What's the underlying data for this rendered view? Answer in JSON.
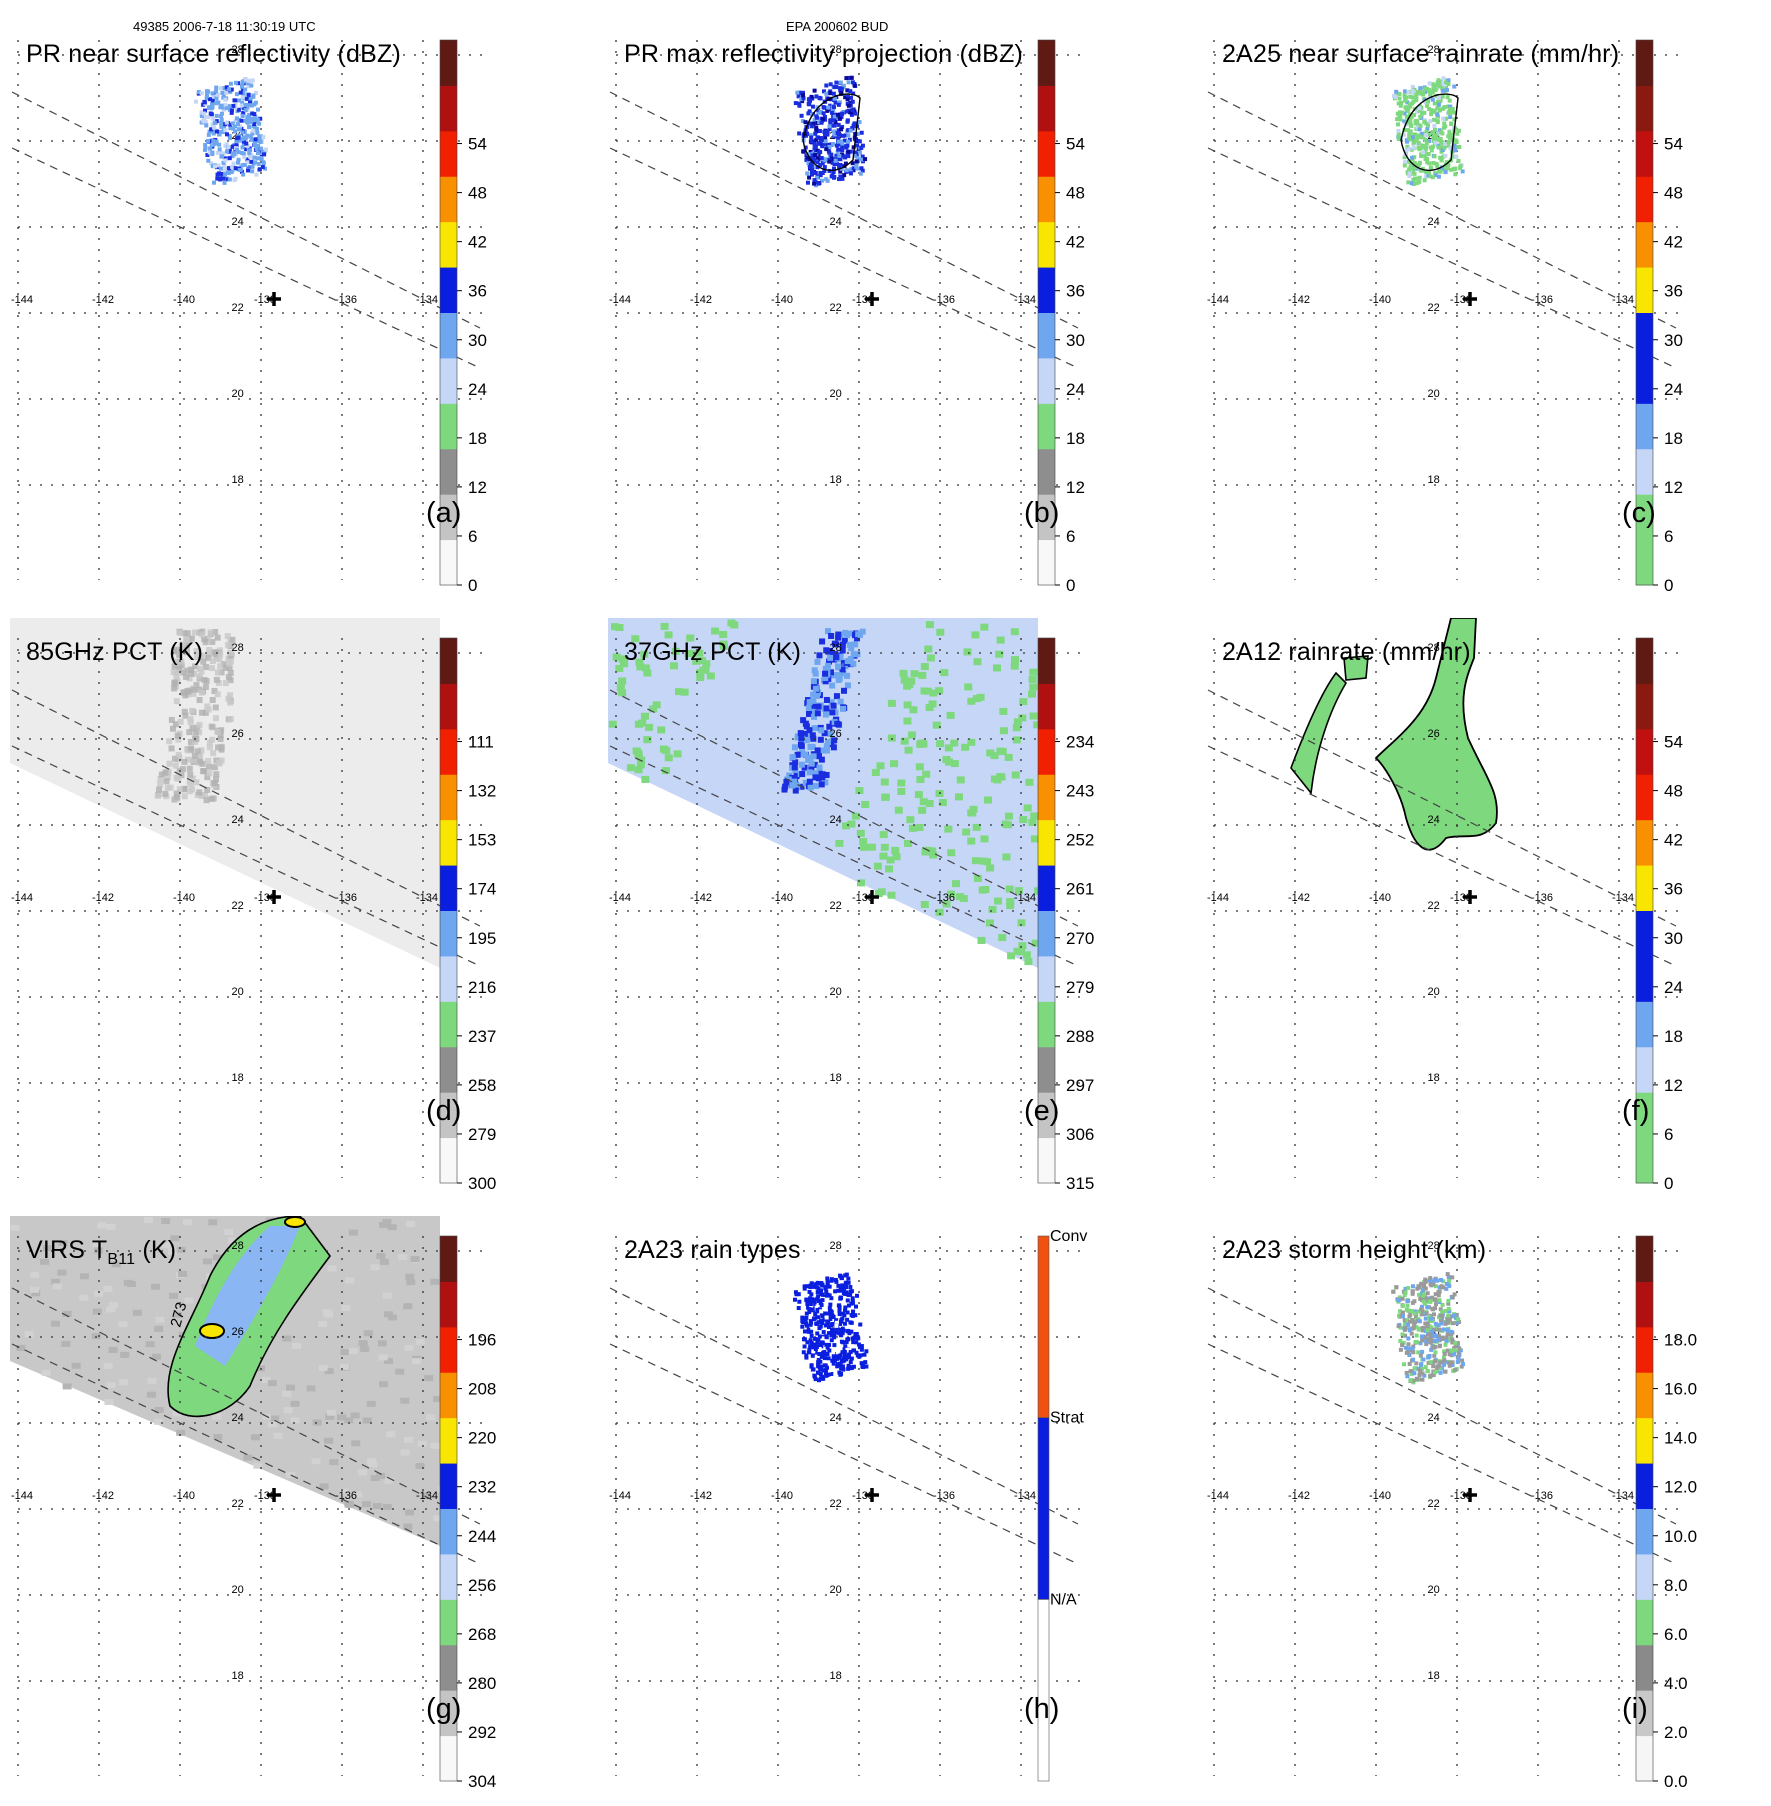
{
  "header": {
    "left": "49385 2006-7-18 11:30:19 UTC",
    "center": "EPA 200602 BUD"
  },
  "map": {
    "lon_ticks": [
      "-144",
      "-142",
      "-140",
      "-138",
      "-136",
      "-134"
    ],
    "lat_ticks": [
      "28",
      "26",
      "24",
      "22",
      "20",
      "18"
    ]
  },
  "chart_data": [
    {
      "type": "heatmap",
      "id": "a",
      "label": "(a)",
      "title": "PR near surface reflectivity (dBZ)",
      "colorbar": {
        "ticks": [
          "0",
          "6",
          "12",
          "18",
          "24",
          "30",
          "36",
          "42",
          "48",
          "54"
        ],
        "range": [
          0,
          60
        ]
      },
      "field": "pr_cluster"
    },
    {
      "type": "heatmap",
      "id": "b",
      "label": "(b)",
      "title": "PR max reflectivity projection (dBZ)",
      "colorbar": {
        "ticks": [
          "0",
          "6",
          "12",
          "18",
          "24",
          "30",
          "36",
          "42",
          "48",
          "54"
        ],
        "range": [
          0,
          60
        ]
      },
      "field": "pr_cluster_dense"
    },
    {
      "type": "heatmap",
      "id": "c",
      "label": "(c)",
      "title": "2A25 near surface rainrate (mm/hr)",
      "colorbar": {
        "ticks": [
          "0",
          "6",
          "12",
          "18",
          "24",
          "30",
          "36",
          "42",
          "48",
          "54"
        ],
        "range": [
          0,
          60
        ]
      },
      "field": "pr_cluster_green"
    },
    {
      "type": "heatmap",
      "id": "d",
      "label": "(d)",
      "title": "85GHz PCT (K)",
      "colorbar": {
        "ticks": [
          "300",
          "279",
          "258",
          "237",
          "216",
          "195",
          "174",
          "153",
          "132",
          "111"
        ],
        "range": [
          300,
          90
        ]
      },
      "field": "tmi_gray"
    },
    {
      "type": "heatmap",
      "id": "e",
      "label": "(e)",
      "title": "37GHz PCT (K)",
      "colorbar": {
        "ticks": [
          "315",
          "306",
          "297",
          "288",
          "279",
          "270",
          "261",
          "252",
          "243",
          "234"
        ],
        "range": [
          315,
          225
        ]
      },
      "field": "tmi_37"
    },
    {
      "type": "heatmap",
      "id": "f",
      "label": "(f)",
      "title": "2A12 rainrate (mm/hr)",
      "colorbar": {
        "ticks": [
          "0",
          "6",
          "12",
          "18",
          "24",
          "30",
          "36",
          "42",
          "48",
          "54"
        ],
        "range": [
          0,
          60
        ]
      },
      "field": "tmi_rain"
    },
    {
      "type": "heatmap",
      "id": "g",
      "label": "(g)",
      "title_main": "VIRS T",
      "title_sub": "B11",
      "title_unit": " (K)",
      "colorbar": {
        "ticks": [
          "304",
          "292",
          "280",
          "268",
          "256",
          "244",
          "232",
          "220",
          "208",
          "196"
        ],
        "range": [
          304,
          184
        ]
      },
      "contour_label": "273",
      "field": "virs"
    },
    {
      "type": "heatmap",
      "id": "h",
      "label": "(h)",
      "title": "2A23 rain types",
      "colorbar": {
        "categories": [
          "N/A",
          "Strat",
          "Conv"
        ]
      },
      "field": "pr_types"
    },
    {
      "type": "heatmap",
      "id": "i",
      "label": "(i)",
      "title": "2A23 storm height (km)",
      "colorbar": {
        "ticks": [
          "0.0",
          "2.0",
          "4.0",
          "6.0",
          "8.0",
          "10.0",
          "12.0",
          "14.0",
          "16.0",
          "18.0"
        ],
        "range": [
          0,
          20
        ]
      },
      "field": "pr_height"
    }
  ],
  "colors": {
    "cb10": [
      "#f6f6f6",
      "#c4c4c4",
      "#7ed87e",
      "#c6d6f6",
      "#6ea6f0",
      "#0a1ee0",
      "#f8e600",
      "#f89000",
      "#f02000",
      "#601a14"
    ],
    "cb_shift": [
      "#7ed87e",
      "#c6d6f6",
      "#6ea6f0",
      "#0a1ee0",
      "#f8e600",
      "#f89000",
      "#f02000",
      "#b01010",
      "#601a14"
    ],
    "grid": "#333333",
    "swath_line": "#444444"
  }
}
